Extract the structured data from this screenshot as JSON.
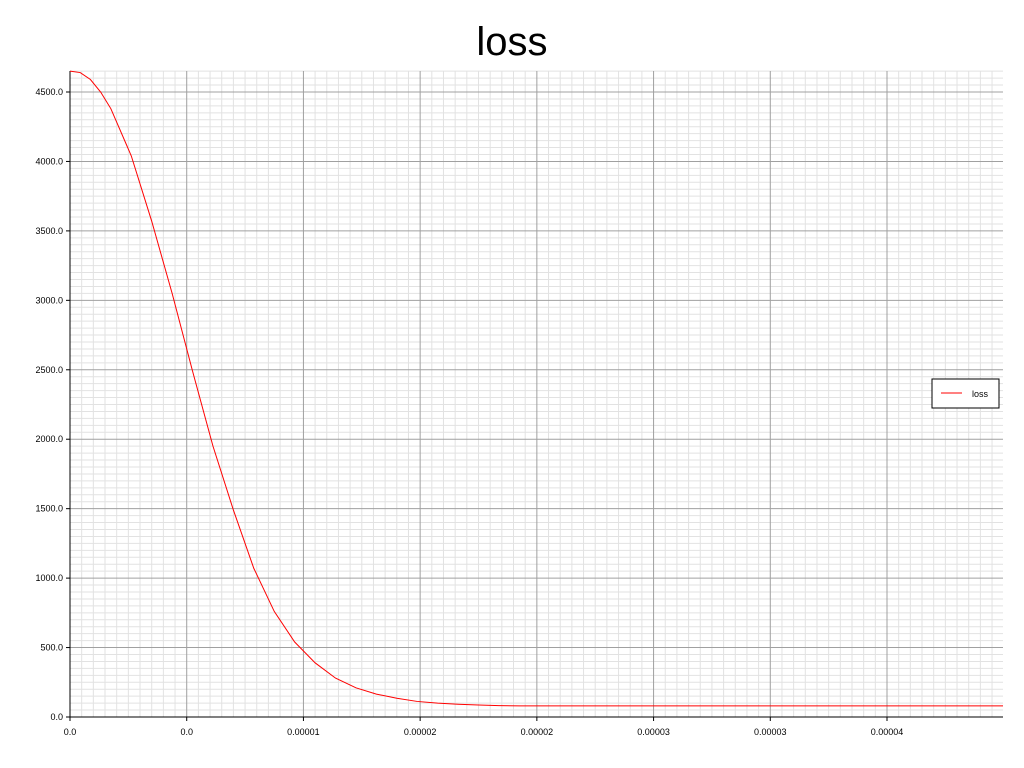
{
  "chart_data": {
    "type": "line",
    "title": "loss",
    "xlabel": "",
    "ylabel": "",
    "x_tick_labels": [
      "0.0",
      "0.0",
      "0.00001",
      "0.00002",
      "0.00002",
      "0.00003",
      "0.00003",
      "0.00004"
    ],
    "y_tick_labels": [
      "0.0",
      "500.0",
      "1000.0",
      "1500.0",
      "2000.0",
      "2500.0",
      "3000.0",
      "3500.0",
      "4000.0",
      "4500.0"
    ],
    "xlim": [
      0,
      4e-05
    ],
    "ylim": [
      0,
      4650
    ],
    "grid": true,
    "legend": {
      "position": "right",
      "entries": [
        "loss"
      ]
    },
    "series": [
      {
        "name": "loss",
        "color": "#ff0000",
        "x": [
          0,
          5e-07,
          1e-06,
          1.5e-06,
          2e-06,
          3e-06,
          4e-06,
          5e-06,
          6e-06,
          7e-06,
          8e-06,
          9e-06,
          1e-05,
          1.1e-05,
          1.2e-05,
          1.3e-05,
          1.4e-05,
          1.5e-05,
          1.6e-05,
          1.7e-05,
          1.8e-05,
          1.9e-05,
          2e-05,
          2.1e-05,
          2.2e-05,
          2.3e-05,
          2.4e-05,
          2.5e-05,
          3e-05,
          3.5e-05,
          4e-05
        ],
        "y": [
          4650,
          4640,
          4590,
          4500,
          4380,
          4040,
          3570,
          3050,
          2490,
          1950,
          1490,
          1070,
          760,
          540,
          390,
          280,
          210,
          165,
          135,
          112,
          100,
          92,
          86,
          82,
          80,
          80,
          80,
          80,
          80,
          80,
          80
        ]
      }
    ]
  }
}
